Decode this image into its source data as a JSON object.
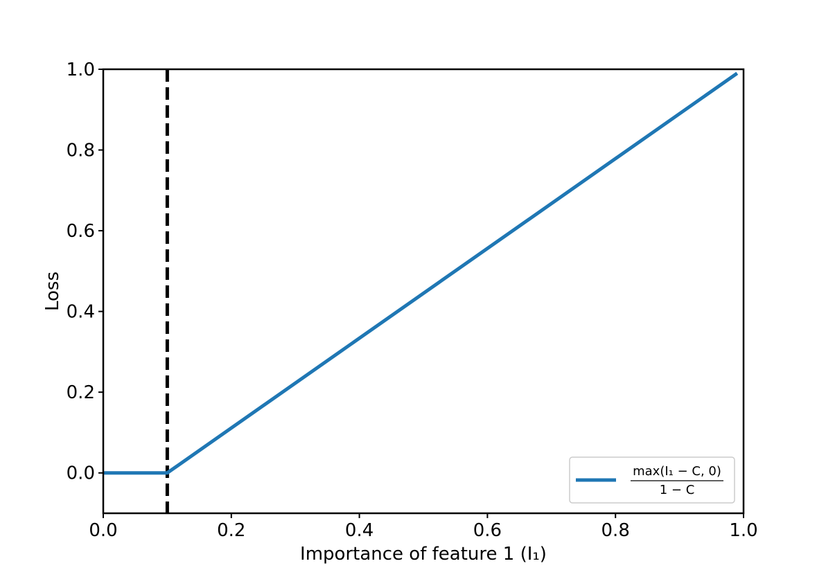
{
  "chart_data": {
    "type": "line",
    "xlabel": "Importance of feature 1 (I₁)",
    "ylabel": "Loss",
    "xlim": [
      0.0,
      1.0
    ],
    "ylim": [
      -0.1,
      1.0
    ],
    "x_ticks": [
      "0.0",
      "0.2",
      "0.4",
      "0.6",
      "0.8",
      "1.0"
    ],
    "y_ticks": [
      "0.0",
      "0.2",
      "0.4",
      "0.6",
      "0.8",
      "1.0"
    ],
    "grid": false,
    "legend_position": "lower-right",
    "series": [
      {
        "name": "max(I₁ − C, 0) / (1 − C)",
        "legend_numerator": "max(I₁ − C, 0)",
        "legend_denominator": "1 − C",
        "color": "#1f77b4",
        "x": [
          0.0,
          0.1,
          0.99
        ],
        "y": [
          0.0,
          0.0,
          0.99
        ]
      }
    ],
    "reference_line": {
      "orientation": "vertical",
      "x": 0.1,
      "style": "dashed",
      "color": "#000000"
    }
  }
}
